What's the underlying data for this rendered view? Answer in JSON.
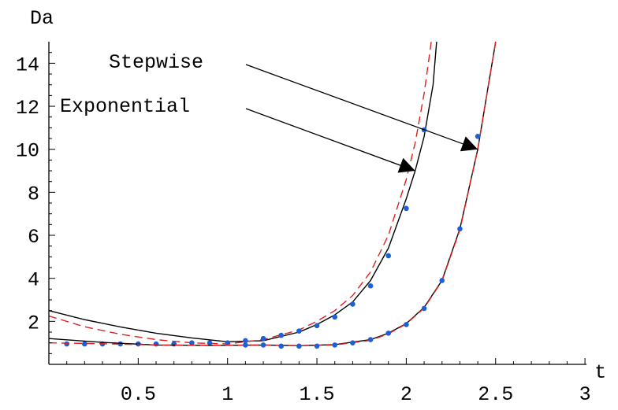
{
  "chart_data": {
    "type": "line",
    "title": "",
    "xlabel": "t",
    "ylabel": "Da",
    "xlim": [
      0,
      3
    ],
    "ylim": [
      0,
      15
    ],
    "grid": false,
    "x_ticks": [
      0.5,
      1,
      1.5,
      2,
      2.5,
      3
    ],
    "x_tick_labels": [
      "0.5",
      "1",
      "1.5",
      "2",
      "2.5",
      "3"
    ],
    "y_ticks": [
      2,
      4,
      6,
      8,
      10,
      12,
      14
    ],
    "y_tick_labels": [
      "2",
      "4",
      "6",
      "8",
      "10",
      "12",
      "14"
    ],
    "colors": {
      "solid": "#000000",
      "dashed": "#e02020",
      "points": "#1f5fd6",
      "axes": "#000000"
    },
    "annotations": [
      {
        "text": "Stepwise",
        "arrow_to": [
          2.4,
          10.0
        ]
      },
      {
        "text": "Exponential",
        "arrow_to": [
          2.05,
          9.0
        ]
      }
    ],
    "series": [
      {
        "style": "solid",
        "x": [
          0,
          0.2,
          0.4,
          0.6,
          0.8,
          1.0,
          1.2,
          1.4,
          1.5,
          1.6,
          1.7,
          1.8,
          1.9,
          2.0,
          2.05,
          2.1,
          2.15,
          2.17
        ],
        "y": [
          2.5,
          2.08,
          1.74,
          1.45,
          1.23,
          1.05,
          1.1,
          1.5,
          1.85,
          2.3,
          2.9,
          3.9,
          5.4,
          7.7,
          9.0,
          10.6,
          13.0,
          15.0
        ]
      },
      {
        "style": "dashed",
        "x": [
          0,
          0.2,
          0.4,
          0.6,
          0.8,
          1.0,
          1.2,
          1.4,
          1.5,
          1.6,
          1.7,
          1.8,
          1.9,
          2.0,
          2.05,
          2.1,
          2.14
        ],
        "y": [
          2.25,
          1.75,
          1.4,
          1.15,
          1.0,
          0.95,
          1.15,
          1.6,
          2.0,
          2.5,
          3.2,
          4.3,
          6.0,
          8.6,
          10.3,
          12.6,
          15.0
        ]
      },
      {
        "style": "points",
        "x": [
          0.1,
          0.2,
          0.3,
          0.4,
          0.5,
          0.6,
          0.7,
          0.8,
          0.9,
          1.0,
          1.1,
          1.2,
          1.3,
          1.4,
          1.5,
          1.6,
          1.7,
          1.8,
          1.9,
          2.0,
          2.1
        ],
        "y": [
          0.95,
          0.95,
          0.95,
          0.95,
          0.95,
          0.95,
          0.95,
          1.0,
          1.0,
          1.0,
          1.1,
          1.2,
          1.35,
          1.55,
          1.8,
          2.2,
          2.8,
          3.65,
          5.05,
          7.25,
          10.9
        ]
      },
      {
        "style": "solid",
        "x": [
          0,
          0.3,
          0.6,
          0.9,
          1.2,
          1.4,
          1.6,
          1.8,
          1.9,
          2.0,
          2.1,
          2.2,
          2.3,
          2.4,
          2.45,
          2.5
        ],
        "y": [
          1.2,
          1.02,
          0.9,
          0.88,
          0.9,
          0.87,
          0.92,
          1.15,
          1.45,
          1.9,
          2.65,
          3.9,
          6.3,
          10.0,
          12.5,
          15.0
        ]
      },
      {
        "style": "dashed",
        "x": [
          0,
          0.3,
          0.6,
          0.9,
          1.2,
          1.4,
          1.6,
          1.8,
          1.9,
          2.0,
          2.1,
          2.2,
          2.3,
          2.4,
          2.45,
          2.5
        ],
        "y": [
          1.0,
          0.96,
          0.9,
          0.89,
          0.9,
          0.87,
          0.9,
          1.12,
          1.42,
          1.88,
          2.62,
          3.88,
          6.25,
          10.0,
          12.5,
          15.0
        ]
      },
      {
        "style": "points",
        "x": [
          1.1,
          1.2,
          1.3,
          1.4,
          1.5,
          1.6,
          1.7,
          1.8,
          1.9,
          2.0,
          2.1,
          2.2,
          2.3,
          2.4
        ],
        "y": [
          0.9,
          0.9,
          0.85,
          0.85,
          0.85,
          0.9,
          1.0,
          1.15,
          1.45,
          1.85,
          2.6,
          3.9,
          6.3,
          10.6
        ]
      }
    ]
  }
}
